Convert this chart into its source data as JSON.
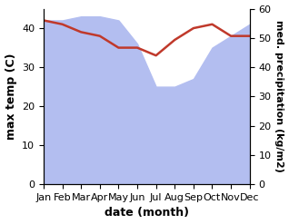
{
  "months": [
    "Jan",
    "Feb",
    "Mar",
    "Apr",
    "May",
    "Jun",
    "Jul",
    "Aug",
    "Sep",
    "Oct",
    "Nov",
    "Dec"
  ],
  "temperature": [
    42,
    41,
    39,
    38,
    35,
    35,
    33,
    37,
    40,
    41,
    38,
    38
  ],
  "precipitation_left_scale": [
    42,
    42,
    43,
    43,
    42,
    36,
    25,
    25,
    27,
    35,
    38,
    41
  ],
  "temp_color": "#c0392b",
  "precip_color": "#b3bef0",
  "temp_ylim": [
    0,
    45
  ],
  "precip_ylim": [
    0,
    60
  ],
  "temp_yticks": [
    0,
    10,
    20,
    30,
    40
  ],
  "precip_yticks": [
    0,
    10,
    20,
    30,
    40,
    50,
    60
  ],
  "xlabel": "date (month)",
  "ylabel_left": "max temp (C)",
  "ylabel_right": "med. precipitation (kg/m2)",
  "bg_color": "#ffffff",
  "label_fontsize": 9,
  "tick_fontsize": 8
}
